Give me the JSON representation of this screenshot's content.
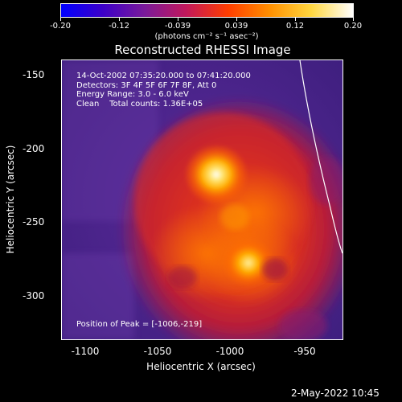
{
  "colorbar": {
    "ticks": [
      "-0.20",
      "-0.12",
      "-0.039",
      "0.039",
      "0.12",
      "0.20"
    ],
    "units": "(photons cm⁻² s⁻¹ asec⁻²)",
    "colors": [
      "#0000ff",
      "#3c00c8",
      "#7a1a9a",
      "#c2185b",
      "#ff3d00",
      "#ff8f00",
      "#ffd740",
      "#ffffff"
    ]
  },
  "title": "Reconstructed RHESSI Image",
  "info": {
    "line1": "14-Oct-2002 07:35:20.000 to 07:41:20.000",
    "line2": "Detectors: 3F 4F 5F 6F 7F 8F, Att 0",
    "line3": "Energy Range: 3.0 - 6.0 keV",
    "line4": "Clean    Total counts: 1.36E+05",
    "peak": "Position of Peak = [-1006,-219]"
  },
  "axes": {
    "xlabel": "Heliocentric X (arcsec)",
    "ylabel": "Heliocentric Y (arcsec)",
    "xticks": [
      "-1100",
      "-1050",
      "-1000",
      "-950"
    ],
    "yticks": [
      "-150",
      "-200",
      "-250",
      "-300"
    ]
  },
  "timestamp": "2-May-2022 10:45"
}
